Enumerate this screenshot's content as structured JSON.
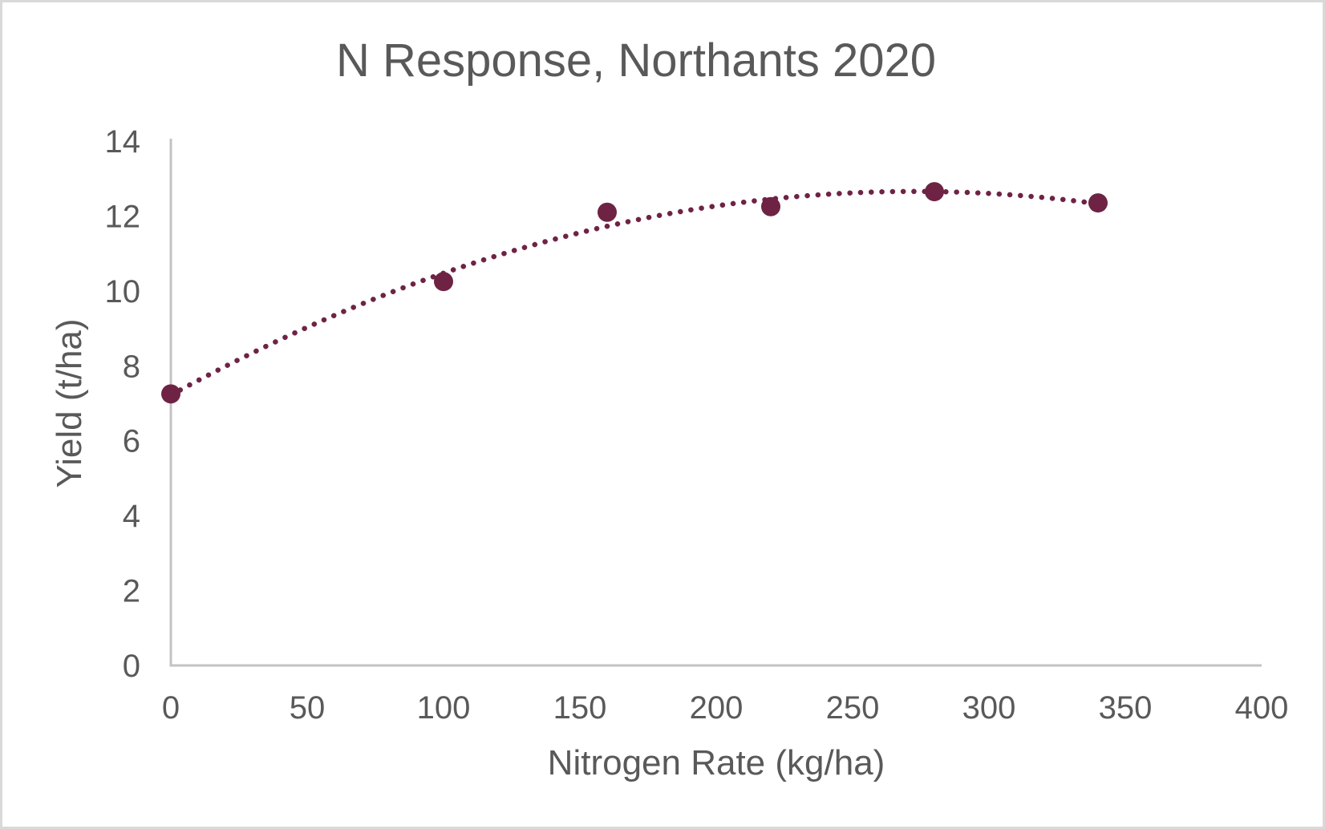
{
  "chart_data": {
    "type": "scatter",
    "title": "N Response, Northants 2020",
    "xlabel": "Nitrogen Rate (kg/ha)",
    "ylabel": "Yield (t/ha)",
    "x": [
      0,
      100,
      160,
      220,
      280,
      340
    ],
    "y": [
      7.25,
      10.25,
      12.1,
      12.25,
      12.65,
      12.35
    ],
    "xlim": [
      0,
      400
    ],
    "ylim": [
      0,
      14
    ],
    "xticks": [
      0,
      50,
      100,
      150,
      200,
      250,
      300,
      350,
      400
    ],
    "yticks": [
      0,
      2,
      4,
      6,
      8,
      10,
      12,
      14
    ],
    "trendline": {
      "type": "polynomial",
      "order": 2,
      "style": "dotted",
      "x_start": 0,
      "x_end": 340
    },
    "grid": false,
    "legend": false,
    "colors": {
      "series": "#6E2345",
      "axis_line": "#C3C3C3",
      "text": "#595959",
      "background": "#FFFFFF",
      "frame_border": "#D9D9D9"
    }
  }
}
